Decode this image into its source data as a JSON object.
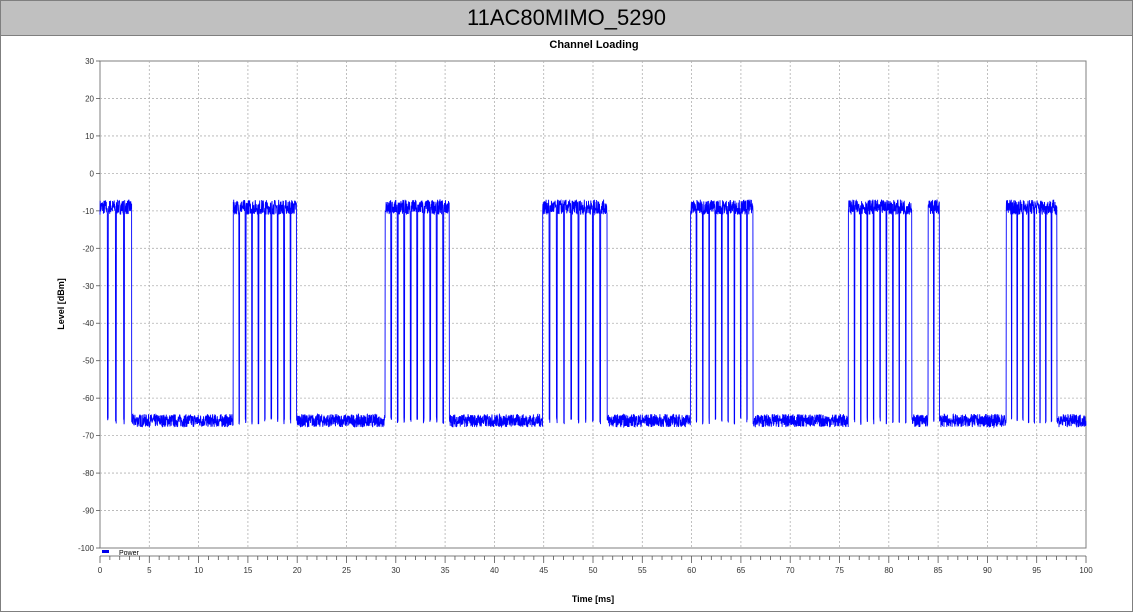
{
  "window": {
    "title": "11AC80MIMO_5290"
  },
  "chart_data": {
    "type": "line",
    "title": "Channel Loading",
    "xlabel": "Time [ms]",
    "ylabel": "Level [dBm]",
    "xlim": [
      0,
      100
    ],
    "ylim": [
      -100,
      30
    ],
    "xticks": [
      0,
      5,
      10,
      15,
      20,
      25,
      30,
      35,
      40,
      45,
      50,
      55,
      60,
      65,
      70,
      75,
      80,
      85,
      90,
      95,
      100
    ],
    "yticks": [
      30,
      20,
      10,
      0,
      -10,
      -20,
      -30,
      -40,
      -50,
      -60,
      -70,
      -80,
      -90,
      -100
    ],
    "grid": true,
    "legend": {
      "placement": "bottom-left",
      "entries": [
        "Power"
      ]
    },
    "series": [
      {
        "name": "Power",
        "color": "#0000ff",
        "noise_floor_dBm": -66,
        "burst_level_dBm": -9,
        "bursts": [
          {
            "start_ms": 0.0,
            "end_ms": 3.3,
            "packets": 4
          },
          {
            "start_ms": 13.5,
            "end_ms": 20.0,
            "packets": 10
          },
          {
            "start_ms": 28.9,
            "end_ms": 35.5,
            "packets": 10
          },
          {
            "start_ms": 44.9,
            "end_ms": 51.5,
            "packets": 9
          },
          {
            "start_ms": 59.9,
            "end_ms": 66.3,
            "packets": 10
          },
          {
            "start_ms": 75.9,
            "end_ms": 82.4,
            "packets": 10
          },
          {
            "start_ms": 84.0,
            "end_ms": 85.2,
            "packets": 2
          },
          {
            "start_ms": 91.9,
            "end_ms": 97.1,
            "packets": 9
          }
        ]
      }
    ]
  }
}
